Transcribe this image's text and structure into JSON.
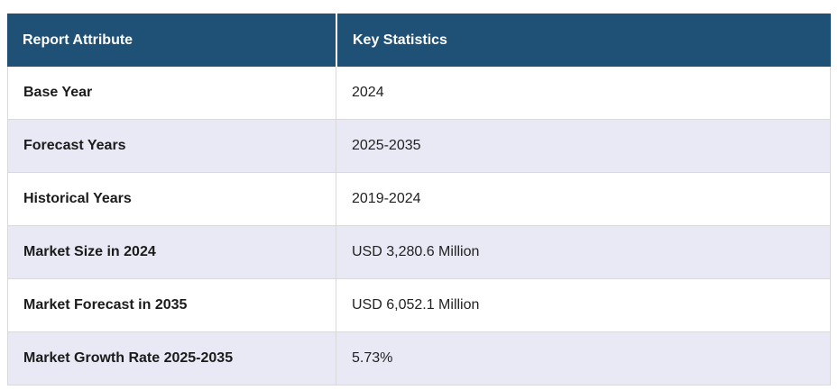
{
  "colors": {
    "header_bg": "#1f5076",
    "header_text": "#ffffff",
    "row_bg": "#ffffff",
    "row_alt_bg": "#e8e9f4",
    "border": "#d9d9d9",
    "text": "#1b1b1b",
    "value_text": "#222222"
  },
  "table": {
    "columns": [
      {
        "label": "Report Attribute"
      },
      {
        "label": "Key Statistics"
      }
    ],
    "rows": [
      {
        "attribute": "Base Year",
        "value": "2024"
      },
      {
        "attribute": "Forecast Years",
        "value": "2025-2035"
      },
      {
        "attribute": "Historical Years",
        "value": "2019-2024"
      },
      {
        "attribute": "Market Size in 2024",
        "value": "USD 3,280.6 Million"
      },
      {
        "attribute": "Market Forecast in 2035",
        "value": "USD 6,052.1 Million"
      },
      {
        "attribute": "Market Growth Rate 2025-2035",
        "value": "5.73%"
      }
    ]
  }
}
